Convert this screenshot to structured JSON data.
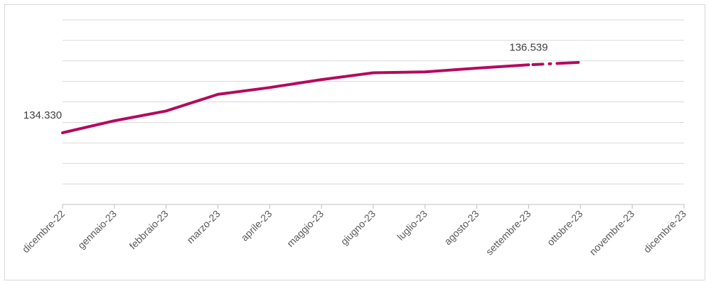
{
  "chart_data": {
    "type": "line",
    "categories": [
      "dicembre-22",
      "gennaio-23",
      "febbraio-23",
      "marzo-23",
      "aprile-23",
      "maggio-23",
      "giugno-23",
      "luglio-23",
      "agosto-23",
      "settembre-23",
      "ottobre-23",
      "novembre-23",
      "dicembre-23"
    ],
    "series": [
      {
        "values": [
          134.33,
          134.72,
          135.04,
          135.58,
          135.8,
          136.06,
          136.28,
          136.31,
          136.43,
          136.539,
          null,
          null,
          null
        ],
        "color": "#B5095F",
        "line_style": "solid"
      },
      {
        "values": [
          null,
          null,
          null,
          null,
          null,
          null,
          null,
          null,
          null,
          136.539,
          136.62,
          null,
          null
        ],
        "color": "#B5095F",
        "line_style": "dash-dot"
      }
    ],
    "data_labels": [
      {
        "category": "dicembre-22",
        "text": "134.330"
      },
      {
        "category": "settembre-23",
        "text": "136.539"
      }
    ],
    "title": "",
    "xlabel": "",
    "ylabel": "",
    "ylim": [
      132.0,
      138.0
    ],
    "y_axis_labels_shown": false,
    "grid": true,
    "legend": "none"
  }
}
